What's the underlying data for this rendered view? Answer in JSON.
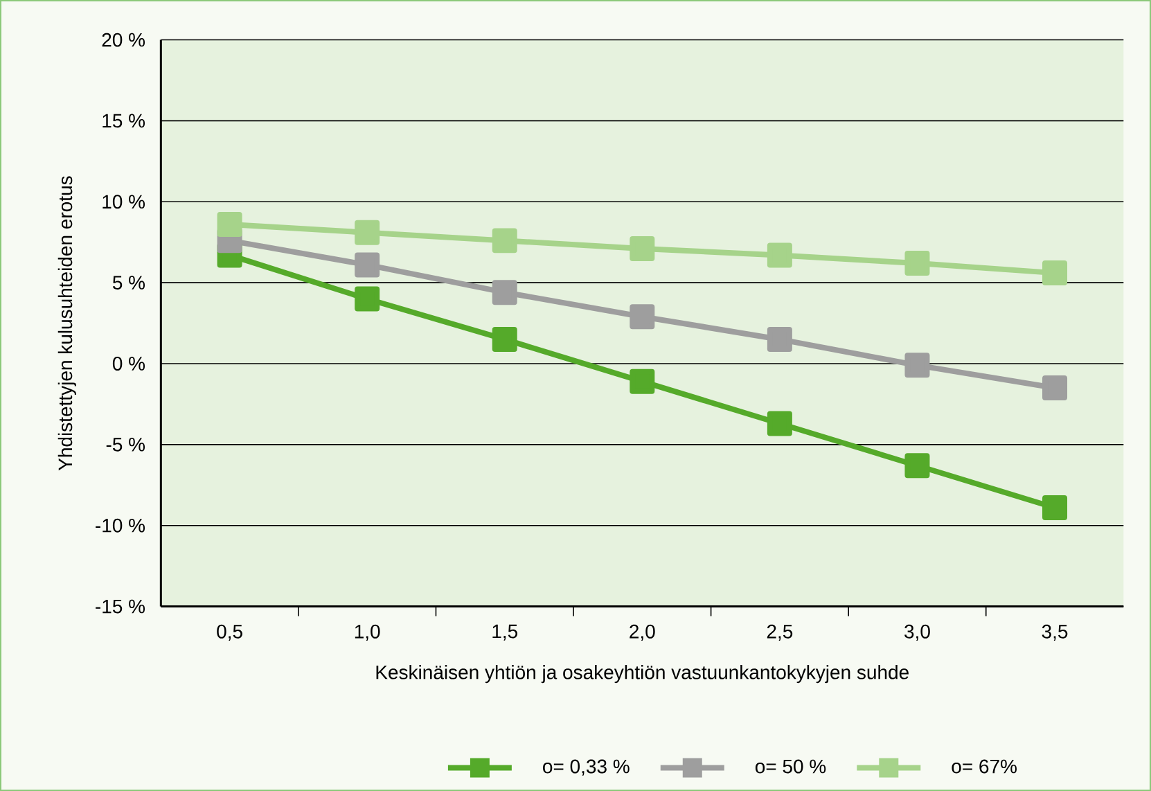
{
  "chart_data": {
    "type": "line",
    "xlabel": "Keskinäisen yhtiön ja osakeyhtiön vastuunkantokykyjen suhde",
    "ylabel": "Yhdistettyjen kulusuhteiden erotus",
    "categories": [
      "0,5",
      "1,0",
      "1,5",
      "2,0",
      "2,5",
      "3,0",
      "3,5"
    ],
    "series": [
      {
        "name": "o= 0,33 %",
        "color": "#55aa2a",
        "values": [
          6.7,
          4.0,
          1.5,
          -1.1,
          -3.7,
          -6.3,
          -8.9
        ]
      },
      {
        "name": "o= 50 %",
        "color": "#9e9e9e",
        "values": [
          7.6,
          6.1,
          4.4,
          2.9,
          1.5,
          -0.1,
          -1.5
        ]
      },
      {
        "name": "o= 67%",
        "color": "#a6d38a",
        "values": [
          8.6,
          8.1,
          7.6,
          7.1,
          6.7,
          6.2,
          5.6
        ]
      }
    ],
    "ylim": [
      -15,
      20
    ],
    "yticks": [
      {
        "value": -15,
        "label": "-15 %"
      },
      {
        "value": -10,
        "label": "-10 %"
      },
      {
        "value": -5,
        "label": "-5 %"
      },
      {
        "value": 0,
        "label": "0 %"
      },
      {
        "value": 5,
        "label": "5 %"
      },
      {
        "value": 10,
        "label": "10 %"
      },
      {
        "value": 15,
        "label": "15 %"
      },
      {
        "value": 20,
        "label": "20 %"
      }
    ],
    "grid": "y",
    "legend": "bottom",
    "marker": "square",
    "line_style": "solid"
  }
}
